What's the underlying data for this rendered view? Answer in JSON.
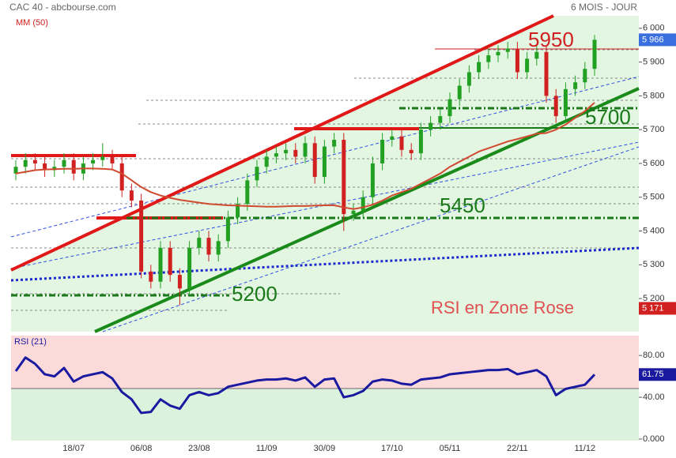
{
  "chart_data": [
    {
      "type": "candlestick",
      "title": "CAC 40 - abcbourse.com",
      "subtitle": "6 MOIS - JOUR",
      "categories": [
        null,
        null,
        null,
        null,
        null,
        null,
        "18/07",
        null,
        null,
        null,
        null,
        null,
        null,
        "06/08",
        null,
        null,
        null,
        null,
        null,
        "23/08",
        null,
        null,
        null,
        null,
        null,
        null,
        "11/09",
        null,
        null,
        null,
        null,
        null,
        "30/09",
        null,
        null,
        null,
        null,
        null,
        null,
        "17/10",
        null,
        null,
        null,
        null,
        null,
        "05/11",
        null,
        null,
        null,
        null,
        null,
        null,
        "22/11",
        null,
        null,
        null,
        null,
        null,
        null,
        "11/12",
        null
      ],
      "open": [
        5570,
        5590,
        5610,
        5600,
        5580,
        5590,
        5610,
        5570,
        5600,
        5610,
        5620,
        5600,
        5520,
        5490,
        5280,
        5250,
        5350,
        5270,
        5230,
        5350,
        5380,
        5330,
        5370,
        5440,
        5480,
        5550,
        5590,
        5620,
        5630,
        5640,
        5620,
        5660,
        5560,
        5650,
        5670,
        5450,
        5460,
        5500,
        5600,
        5670,
        5680,
        5640,
        5630,
        5700,
        5720,
        5740,
        5790,
        5830,
        5870,
        5900,
        5920,
        5930,
        5940,
        5870,
        5910,
        5930,
        5800,
        5740,
        5820,
        5840,
        5880
      ],
      "high": [
        5610,
        5630,
        5630,
        5620,
        5610,
        5630,
        5630,
        5620,
        5630,
        5660,
        5640,
        5620,
        5540,
        5510,
        5300,
        5370,
        5370,
        5290,
        5370,
        5400,
        5400,
        5390,
        5460,
        5500,
        5570,
        5610,
        5640,
        5650,
        5660,
        5660,
        5680,
        5680,
        5670,
        5690,
        5690,
        5480,
        5520,
        5620,
        5690,
        5700,
        5700,
        5660,
        5720,
        5740,
        5760,
        5810,
        5850,
        5890,
        5920,
        5940,
        5950,
        5960,
        5960,
        5930,
        5950,
        5950,
        5820,
        5840,
        5860,
        5900,
        5980
      ],
      "low": [
        5550,
        5570,
        5580,
        5560,
        5560,
        5570,
        5550,
        5550,
        5580,
        5590,
        5580,
        5500,
        5470,
        5260,
        5230,
        5230,
        5250,
        5180,
        5210,
        5330,
        5310,
        5310,
        5350,
        5420,
        5460,
        5530,
        5570,
        5600,
        5610,
        5600,
        5600,
        5540,
        5540,
        5630,
        5400,
        5430,
        5440,
        5480,
        5580,
        5650,
        5620,
        5610,
        5610,
        5680,
        5700,
        5720,
        5770,
        5810,
        5850,
        5880,
        5900,
        5910,
        5850,
        5850,
        5890,
        5780,
        5720,
        5720,
        5800,
        5820,
        5860
      ],
      "close": [
        5590,
        5610,
        5600,
        5580,
        5590,
        5610,
        5570,
        5600,
        5610,
        5620,
        5600,
        5520,
        5490,
        5280,
        5250,
        5350,
        5270,
        5230,
        5350,
        5380,
        5330,
        5370,
        5440,
        5480,
        5550,
        5590,
        5620,
        5630,
        5640,
        5620,
        5660,
        5560,
        5650,
        5670,
        5450,
        5460,
        5500,
        5600,
        5670,
        5680,
        5640,
        5630,
        5700,
        5720,
        5740,
        5790,
        5830,
        5870,
        5900,
        5920,
        5930,
        5940,
        5870,
        5910,
        5930,
        5800,
        5740,
        5820,
        5840,
        5880,
        5966
      ],
      "up_color": "#22a022",
      "down_color": "#d02020",
      "ylim": [
        5102,
        6037
      ],
      "yticks": [
        {
          "value": 6000,
          "label": "6 000"
        },
        {
          "value": 5900,
          "label": "5 900"
        },
        {
          "value": 5800,
          "label": "5 800"
        },
        {
          "value": 5700,
          "label": "5 700"
        },
        {
          "value": 5600,
          "label": "5 600"
        },
        {
          "value": 5500,
          "label": "5 500"
        },
        {
          "value": 5400,
          "label": "5 400"
        },
        {
          "value": 5300,
          "label": "5 300"
        },
        {
          "value": 5200,
          "label": "5 200"
        }
      ],
      "markers": [
        {
          "value": 5966,
          "label": "5 966",
          "color": "#3a6fe0"
        },
        {
          "value": 5171,
          "label": "5 171",
          "color": "#d02020"
        }
      ],
      "series": [
        {
          "name": "MM (50)",
          "color": "#d04a30",
          "values": [
            5570,
            5575,
            5580,
            5582,
            5583,
            5584,
            5584,
            5585,
            5585,
            5584,
            5582,
            5570,
            5550,
            5530,
            5515,
            5505,
            5498,
            5492,
            5488,
            5484,
            5480,
            5478,
            5476,
            5475,
            5474,
            5473,
            5472,
            5472,
            5473,
            5474,
            5474,
            5475,
            5476,
            5476,
            5470,
            5465,
            5470,
            5478,
            5490,
            5505,
            5515,
            5525,
            5540,
            5555,
            5570,
            5590,
            5605,
            5620,
            5635,
            5645,
            5655,
            5665,
            5672,
            5680,
            5688,
            5690,
            5700,
            5715,
            5735,
            5755,
            5780
          ]
        }
      ],
      "annotations": [
        {
          "text": "5950",
          "color": "#d02020"
        },
        {
          "text": "5700",
          "color": "#1a7a1a"
        },
        {
          "text": "5450",
          "color": "#1a7a1a"
        },
        {
          "text": "5200",
          "color": "#1a7a1a"
        },
        {
          "text": "RSI en Zone Rose",
          "color": "#e05050"
        }
      ]
    },
    {
      "type": "line",
      "series": [
        {
          "name": "RSI (21)",
          "color": "#1a1aa0",
          "values": [
            65,
            78,
            72,
            62,
            60,
            68,
            55,
            60,
            62,
            64,
            58,
            45,
            38,
            25,
            26,
            38,
            32,
            29,
            42,
            45,
            42,
            44,
            50,
            52,
            54,
            56,
            57,
            57,
            58,
            56,
            59,
            50,
            57,
            58,
            40,
            42,
            46,
            55,
            57,
            56,
            53,
            52,
            57,
            58,
            59,
            62,
            63,
            64,
            65,
            66,
            66,
            67,
            62,
            64,
            66,
            60,
            42,
            48,
            50,
            52,
            61.75
          ]
        }
      ],
      "value_label": "61.75",
      "ylim": [
        -1.5,
        99
      ],
      "yticks": [
        {
          "value": 80,
          "label": "80.00"
        },
        {
          "value": 40,
          "label": "40.00"
        },
        {
          "value": 0,
          "label": "0.000"
        }
      ]
    }
  ]
}
